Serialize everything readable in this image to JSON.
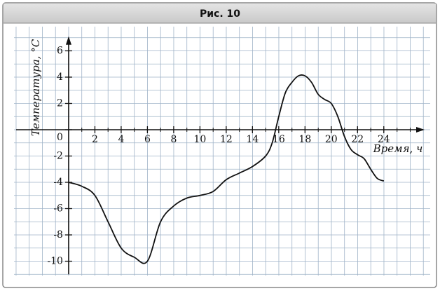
{
  "chart_data": {
    "type": "line",
    "title": "Рис. 10",
    "x_label": "Время, ч",
    "y_label": "Температура, °C",
    "xlim": [
      -4,
      27
    ],
    "ylim": [
      -11,
      7
    ],
    "xticks": [
      2,
      4,
      6,
      8,
      10,
      12,
      14,
      16,
      18,
      20,
      22,
      24
    ],
    "yticks": [
      -10,
      -8,
      -6,
      -4,
      -2,
      0,
      2,
      4,
      6
    ],
    "color": "#111111",
    "x": [
      0,
      1,
      2,
      3,
      4,
      5,
      6,
      7,
      8,
      9,
      10,
      11,
      12,
      13,
      14,
      15,
      15.5,
      16,
      16.5,
      17,
      17.5,
      18,
      18.5,
      19,
      19.5,
      20,
      20.5,
      21,
      21.5,
      22,
      22.5,
      23,
      23.5,
      24
    ],
    "values": [
      -4,
      -4.3,
      -5,
      -7,
      -9,
      -9.7,
      -10,
      -7,
      -5.8,
      -5.2,
      -5,
      -4.7,
      -3.8,
      -3.3,
      -2.8,
      -2,
      -1,
      1,
      2.8,
      3.6,
      4.1,
      4.1,
      3.6,
      2.7,
      2.3,
      2,
      1,
      -0.5,
      -1.5,
      -1.9,
      -2.2,
      -3,
      -3.7,
      -3.9
    ]
  }
}
